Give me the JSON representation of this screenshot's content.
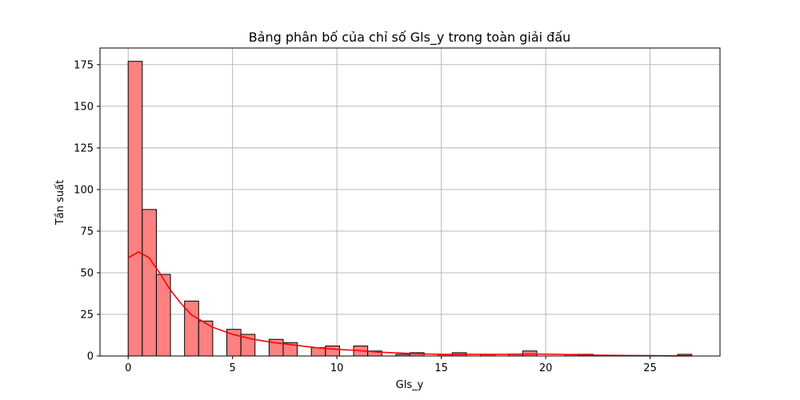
{
  "chart_data": {
    "type": "bar",
    "title": "Bảng phân bố của chỉ số Gls_y trong toàn giải đấu",
    "xlabel": "Gls_y",
    "ylabel": "Tần suất",
    "xlim": [
      -1.35,
      28.35
    ],
    "ylim": [
      0,
      185
    ],
    "xticks": [
      0,
      5,
      10,
      15,
      20,
      25
    ],
    "yticks": [
      0,
      25,
      50,
      75,
      100,
      125,
      150,
      175
    ],
    "grid": true,
    "colors": {
      "bar_fill": "#ff8080",
      "bar_edge": "#000000",
      "kde_line": "#ff0000"
    },
    "bins": [
      {
        "x0": 0.0,
        "x1": 0.675,
        "count": 177
      },
      {
        "x0": 0.675,
        "x1": 1.35,
        "count": 88
      },
      {
        "x0": 1.35,
        "x1": 2.025,
        "count": 49
      },
      {
        "x0": 2.7,
        "x1": 3.375,
        "count": 33
      },
      {
        "x0": 3.375,
        "x1": 4.05,
        "count": 21
      },
      {
        "x0": 4.725,
        "x1": 5.4,
        "count": 16
      },
      {
        "x0": 5.4,
        "x1": 6.075,
        "count": 13
      },
      {
        "x0": 6.75,
        "x1": 7.425,
        "count": 10
      },
      {
        "x0": 7.425,
        "x1": 8.1,
        "count": 8
      },
      {
        "x0": 8.775,
        "x1": 9.45,
        "count": 5
      },
      {
        "x0": 9.45,
        "x1": 10.125,
        "count": 6
      },
      {
        "x0": 10.8,
        "x1": 11.475,
        "count": 6
      },
      {
        "x0": 11.475,
        "x1": 12.15,
        "count": 3
      },
      {
        "x0": 12.825,
        "x1": 13.5,
        "count": 1
      },
      {
        "x0": 13.5,
        "x1": 14.175,
        "count": 2
      },
      {
        "x0": 14.85,
        "x1": 15.525,
        "count": 1
      },
      {
        "x0": 15.525,
        "x1": 16.2,
        "count": 2
      },
      {
        "x0": 16.875,
        "x1": 17.55,
        "count": 1
      },
      {
        "x0": 18.225,
        "x1": 18.9,
        "count": 1
      },
      {
        "x0": 18.9,
        "x1": 19.575,
        "count": 3
      },
      {
        "x0": 20.925,
        "x1": 21.6,
        "count": 1
      },
      {
        "x0": 21.6,
        "x1": 22.275,
        "count": 1
      },
      {
        "x0": 26.325,
        "x1": 27.0,
        "count": 1
      }
    ],
    "kde": {
      "x": [
        0,
        0.5,
        1,
        1.5,
        2,
        2.5,
        3,
        4,
        5,
        6,
        7,
        8,
        9,
        10,
        11,
        12,
        13,
        14,
        15,
        16,
        17,
        18,
        19,
        20,
        21,
        22,
        23,
        24,
        25,
        26,
        27
      ],
      "y": [
        59,
        62.5,
        59,
        50,
        40,
        32,
        25,
        17.5,
        13,
        10,
        8,
        6.5,
        5,
        4,
        3.3,
        2.3,
        1.8,
        1.3,
        1,
        1,
        1,
        1,
        1.2,
        1.1,
        0.9,
        0.6,
        0.4,
        0.3,
        0.2,
        0.1,
        0.1
      ]
    }
  }
}
